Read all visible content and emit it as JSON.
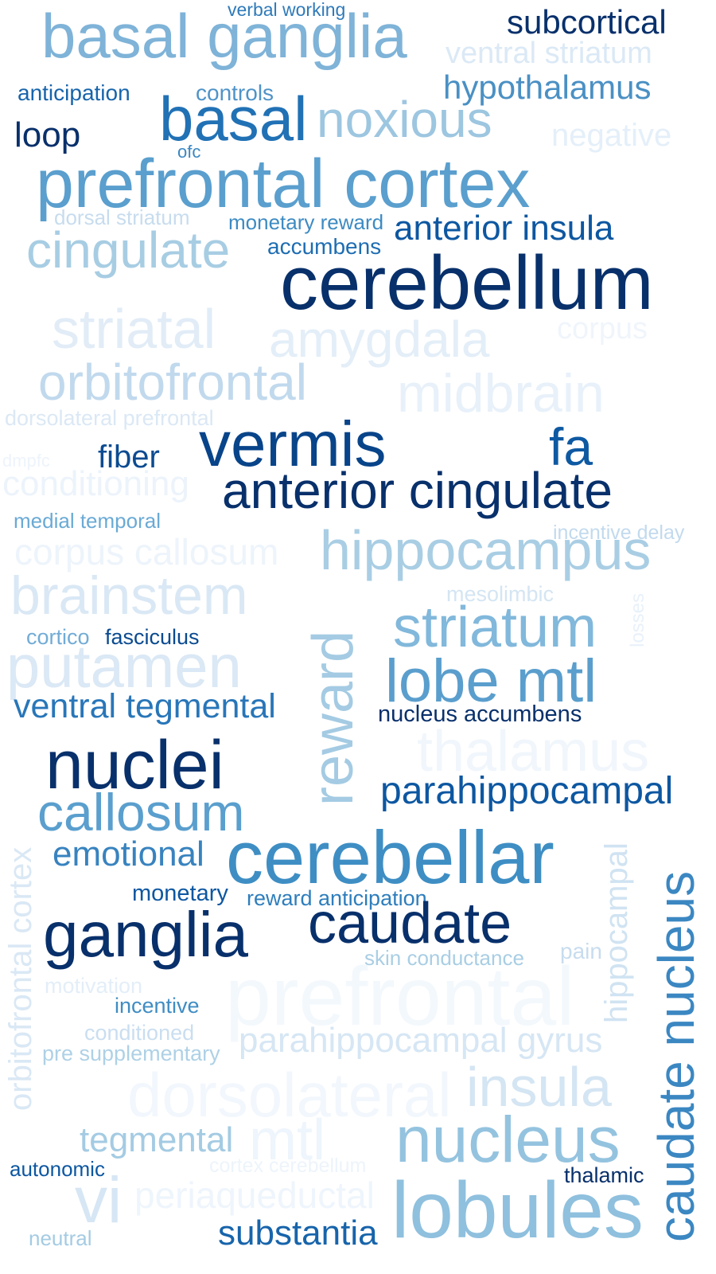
{
  "words": [
    {
      "text": "verbal working",
      "color": "#2f7ab9"
    },
    {
      "text": "basal ganglia",
      "color": "#7fb3d8"
    },
    {
      "text": "subcortical",
      "color": "#08306b"
    },
    {
      "text": "ventral striatum",
      "color": "#dbe9f6"
    },
    {
      "text": "anticipation",
      "color": "#1764ab"
    },
    {
      "text": "controls",
      "color": "#4f93c8"
    },
    {
      "text": "hypothalamus",
      "color": "#4a90c4"
    },
    {
      "text": "loop",
      "color": "#08306b"
    },
    {
      "text": "basal",
      "color": "#2171b5"
    },
    {
      "text": "noxious",
      "color": "#9dc6e0"
    },
    {
      "text": "negative",
      "color": "#e4eff9"
    },
    {
      "text": "ofc",
      "color": "#3b87c2"
    },
    {
      "text": "prefrontal cortex",
      "color": "#5a9fce"
    },
    {
      "text": "dorsal striatum",
      "color": "#c7dcee"
    },
    {
      "text": "monetary reward",
      "color": "#3d8bc3"
    },
    {
      "text": "anterior insula",
      "color": "#0d57a1"
    },
    {
      "text": "cingulate",
      "color": "#a7cde3"
    },
    {
      "text": "accumbens",
      "color": "#1e6db2"
    },
    {
      "text": "cerebellum",
      "color": "#08306b"
    },
    {
      "text": "striatal",
      "color": "#e1ecf7"
    },
    {
      "text": "amygdala",
      "color": "#e3eef8"
    },
    {
      "text": "corpus",
      "color": "#f0f5fc"
    },
    {
      "text": "orbitofrontal",
      "color": "#c1d9ed"
    },
    {
      "text": "midbrain",
      "color": "#e8f1fa"
    },
    {
      "text": "dorsolateral prefrontal",
      "color": "#dbe8f5"
    },
    {
      "text": "dmpfc",
      "color": "#edf4fb"
    },
    {
      "text": "fiber",
      "color": "#0b4b91"
    },
    {
      "text": "vermis",
      "color": "#084489"
    },
    {
      "text": "fa",
      "color": "#0e59a2"
    },
    {
      "text": "conditioning",
      "color": "#ecf3fb"
    },
    {
      "text": "anterior cingulate",
      "color": "#08306b"
    },
    {
      "text": "medial temporal",
      "color": "#6aaad5"
    },
    {
      "text": "incentive delay",
      "color": "#c2daee"
    },
    {
      "text": "corpus callosum",
      "color": "#edf4fb"
    },
    {
      "text": "hippocampus",
      "color": "#a9cee4"
    },
    {
      "text": "mesolimbic",
      "color": "#d4e5f3"
    },
    {
      "text": "brainstem",
      "color": "#dae8f5"
    },
    {
      "text": "losses",
      "color": "#e8f1fa"
    },
    {
      "text": "reward",
      "color": "#a4cbe3"
    },
    {
      "text": "striatum",
      "color": "#81b8db"
    },
    {
      "text": "cortico",
      "color": "#72acd6"
    },
    {
      "text": "fasciculus",
      "color": "#0a4a90"
    },
    {
      "text": "putamen",
      "color": "#dbe8f5"
    },
    {
      "text": "lobe mtl",
      "color": "#5a9ecd"
    },
    {
      "text": "ventral tegmental",
      "color": "#2876b9"
    },
    {
      "text": "nucleus accumbens",
      "color": "#08306b"
    },
    {
      "text": "nuclei",
      "color": "#08306b"
    },
    {
      "text": "thalamus",
      "color": "#f0f6fc"
    },
    {
      "text": "parahippocampal",
      "color": "#0d57a1"
    },
    {
      "text": "orbitofrontal cortex",
      "color": "#dae8f5"
    },
    {
      "text": "callosum",
      "color": "#5a9fce"
    },
    {
      "text": "emotional",
      "color": "#3883bf"
    },
    {
      "text": "cerebellar",
      "color": "#3e8ec4"
    },
    {
      "text": "hippocampal",
      "color": "#d0e3f2"
    },
    {
      "text": "caudate nucleus",
      "color": "#3b87c2"
    },
    {
      "text": "monetary",
      "color": "#0d57a1"
    },
    {
      "text": "reward anticipation",
      "color": "#2e7ebc"
    },
    {
      "text": "ganglia",
      "color": "#08306b"
    },
    {
      "text": "caudate",
      "color": "#08306b"
    },
    {
      "text": "skin conductance",
      "color": "#a9cee4"
    },
    {
      "text": "pain",
      "color": "#c7dcee"
    },
    {
      "text": "motivation",
      "color": "#e3eef8"
    },
    {
      "text": "prefrontal",
      "color": "#f3f8fd"
    },
    {
      "text": "incentive",
      "color": "#3f8dc4"
    },
    {
      "text": "conditioned",
      "color": "#cadef0"
    },
    {
      "text": "pre supplementary",
      "color": "#aed1e6"
    },
    {
      "text": "parahippocampal gyrus",
      "color": "#d6e6f4"
    },
    {
      "text": "insula",
      "color": "#d4e5f3"
    },
    {
      "text": "dorsolateral",
      "color": "#f2f7fd"
    },
    {
      "text": "tegmental",
      "color": "#a4cbe3"
    },
    {
      "text": "mtl",
      "color": "#eef5fc"
    },
    {
      "text": "nucleus",
      "color": "#94c3df"
    },
    {
      "text": "autonomic",
      "color": "#0d57a1"
    },
    {
      "text": "cortex cerebellum",
      "color": "#edf4fb"
    },
    {
      "text": "thalamic",
      "color": "#08306b"
    },
    {
      "text": "vi",
      "color": "#d6e6f4"
    },
    {
      "text": "periaqueductal",
      "color": "#eef5fc"
    },
    {
      "text": "lobules",
      "color": "#8fc0de"
    },
    {
      "text": "substantia",
      "color": "#1764ab"
    },
    {
      "text": "neutral",
      "color": "#a4cbe3"
    }
  ]
}
